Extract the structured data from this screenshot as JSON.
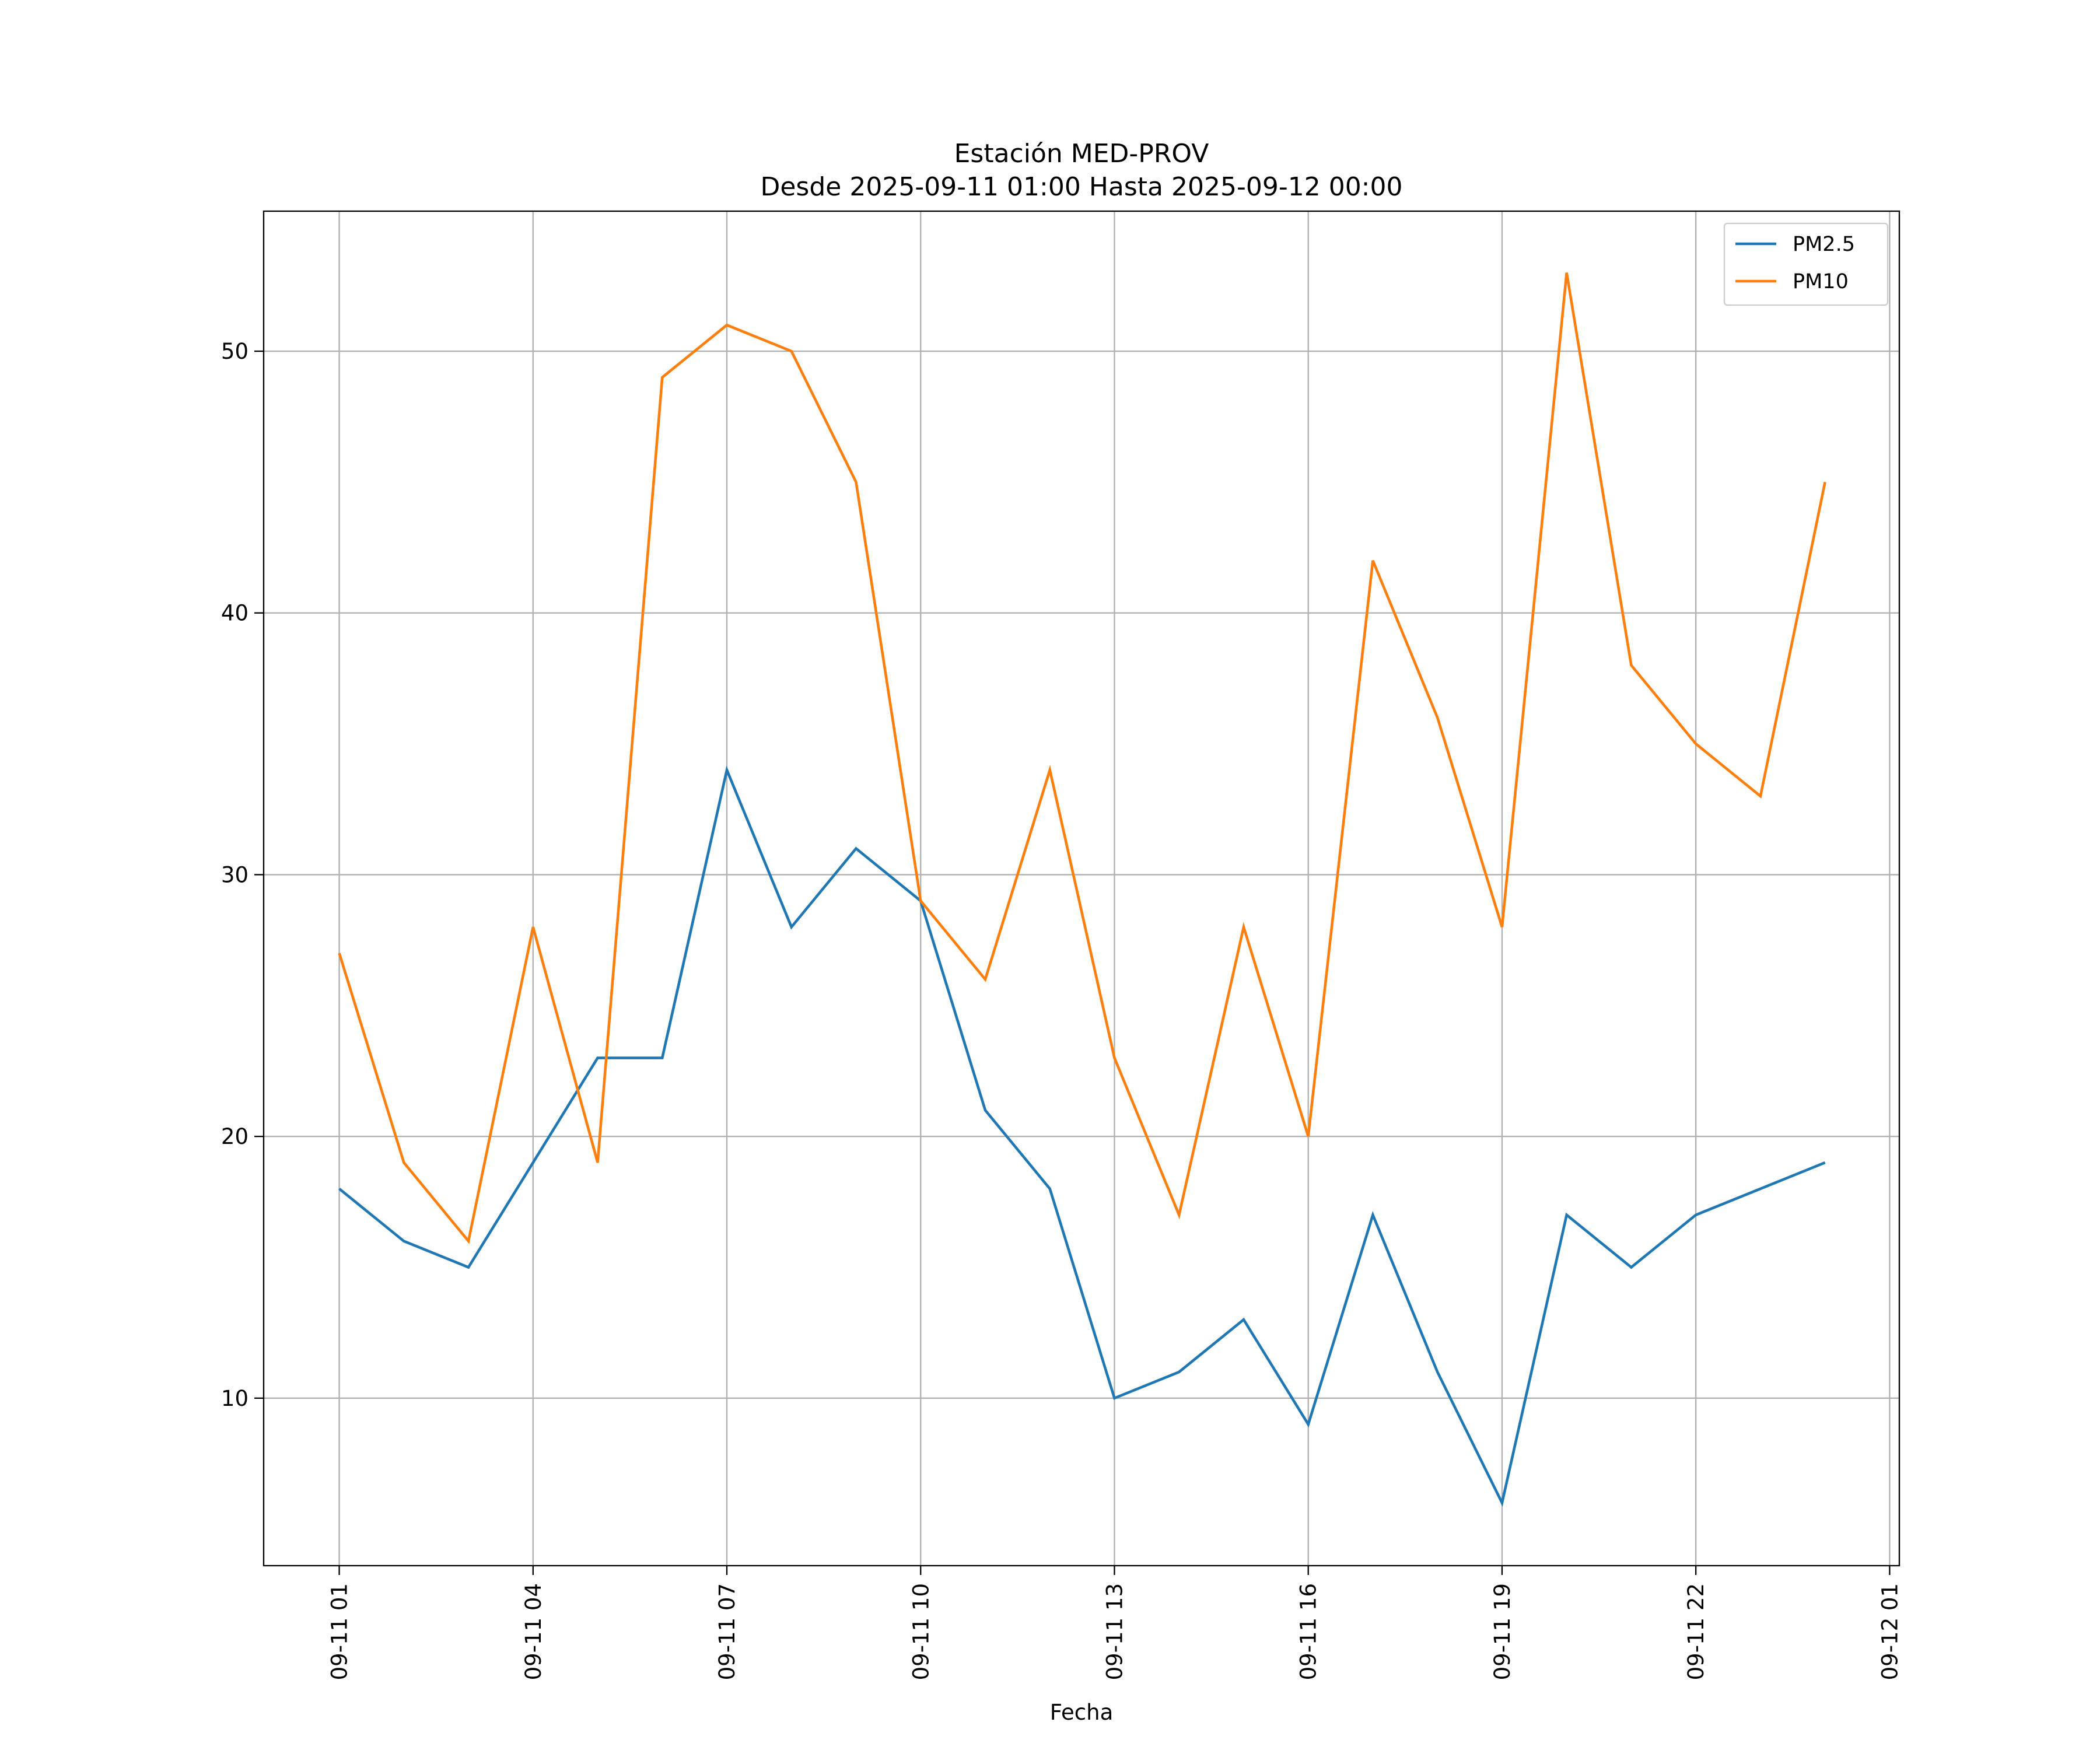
{
  "chart_data": {
    "type": "line",
    "title": "Estación MED-PROV",
    "subtitle": "Desde 2025-09-11 01:00 Hasta 2025-09-12 00:00",
    "xlabel": "Fecha",
    "ylabel": "",
    "x": [
      "09-11 01:00",
      "09-11 02:00",
      "09-11 03:00",
      "09-11 04:00",
      "09-11 05:00",
      "09-11 06:00",
      "09-11 07:00",
      "09-11 08:00",
      "09-11 09:00",
      "09-11 10:00",
      "09-11 11:00",
      "09-11 12:00",
      "09-11 13:00",
      "09-11 14:00",
      "09-11 15:00",
      "09-11 16:00",
      "09-11 17:00",
      "09-11 18:00",
      "09-11 19:00",
      "09-11 20:00",
      "09-11 21:00",
      "09-11 22:00",
      "09-11 23:00",
      "09-12 00:00"
    ],
    "series": [
      {
        "name": "PM2.5",
        "color": "#1f77b4",
        "values": [
          18,
          16,
          15,
          19,
          23,
          23,
          34,
          28,
          31,
          29,
          21,
          18,
          10,
          11,
          13,
          9,
          17,
          11,
          6,
          17,
          15,
          17,
          18,
          19
        ]
      },
      {
        "name": "PM10",
        "color": "#ff7f0e",
        "values": [
          27,
          19,
          16,
          28,
          19,
          49,
          51,
          50,
          45,
          29,
          26,
          34,
          23,
          17,
          28,
          20,
          42,
          36,
          28,
          53,
          38,
          35,
          33,
          45
        ]
      }
    ],
    "xticks": [
      {
        "label": "09-11 01",
        "hour": 0
      },
      {
        "label": "09-11 04",
        "hour": 3
      },
      {
        "label": "09-11 07",
        "hour": 6
      },
      {
        "label": "09-11 10",
        "hour": 9
      },
      {
        "label": "09-11 13",
        "hour": 12
      },
      {
        "label": "09-11 16",
        "hour": 15
      },
      {
        "label": "09-11 19",
        "hour": 18
      },
      {
        "label": "09-11 22",
        "hour": 21
      },
      {
        "label": "09-12 01",
        "hour": 24
      }
    ],
    "yticks": [
      10,
      20,
      30,
      40,
      50
    ],
    "xlim_hours": [
      -1.17,
      24.15
    ],
    "ylim": [
      3.6,
      55.35
    ],
    "grid": true,
    "legend_position": "top-right"
  }
}
